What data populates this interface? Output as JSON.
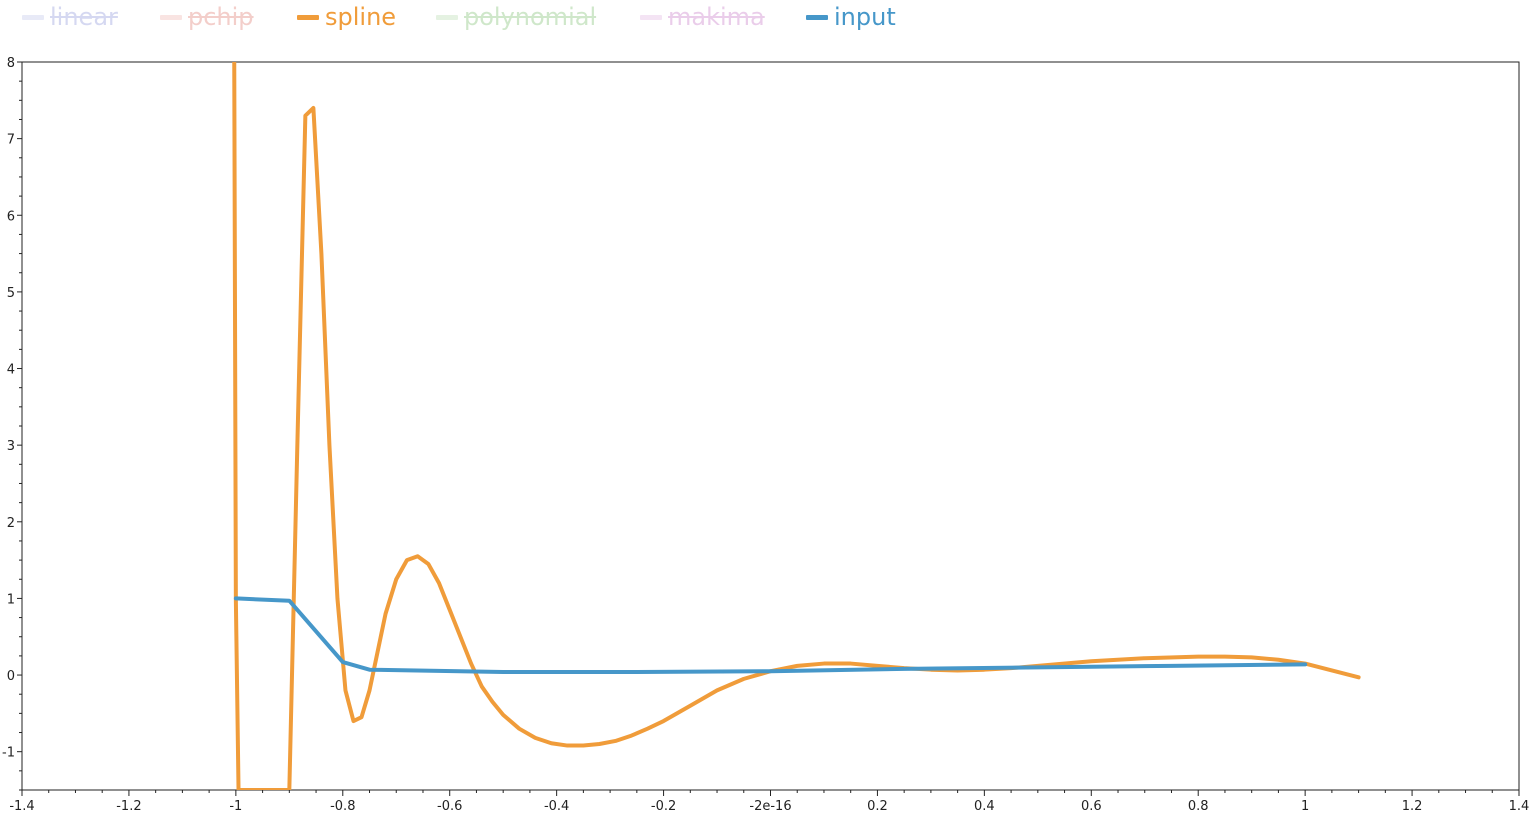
{
  "chart_data": {
    "type": "line",
    "title": "",
    "xlabel": "",
    "ylabel": "",
    "xlim": [
      -1.4,
      1.4
    ],
    "ylim": [
      -1.5,
      8
    ],
    "grid": false,
    "legend_placement": "top-left",
    "x_ticks": [
      {
        "value": -1.4,
        "label": "-1.4"
      },
      {
        "value": -1.2,
        "label": "-1.2"
      },
      {
        "value": -1.0,
        "label": "-1"
      },
      {
        "value": -0.8,
        "label": "-0.8"
      },
      {
        "value": -0.6,
        "label": "-0.6"
      },
      {
        "value": -0.4,
        "label": "-0.4"
      },
      {
        "value": -0.2,
        "label": "-0.2"
      },
      {
        "value": 0.0,
        "label": "-2e-16"
      },
      {
        "value": 0.2,
        "label": "0.2"
      },
      {
        "value": 0.4,
        "label": "0.4"
      },
      {
        "value": 0.6,
        "label": "0.6"
      },
      {
        "value": 0.8,
        "label": "0.8"
      },
      {
        "value": 1.0,
        "label": "1"
      },
      {
        "value": 1.2,
        "label": "1.2"
      },
      {
        "value": 1.4,
        "label": "1.4"
      }
    ],
    "y_ticks": [
      {
        "value": -1,
        "label": "-1"
      },
      {
        "value": 0,
        "label": "0"
      },
      {
        "value": 1,
        "label": "1"
      },
      {
        "value": 2,
        "label": "2"
      },
      {
        "value": 3,
        "label": "3"
      },
      {
        "value": 4,
        "label": "4"
      },
      {
        "value": 5,
        "label": "5"
      },
      {
        "value": 6,
        "label": "6"
      },
      {
        "value": 7,
        "label": "7"
      },
      {
        "value": 8,
        "label": "8"
      }
    ],
    "series": [
      {
        "name": "linear",
        "color": "#b3b9e6",
        "visible": false,
        "x": [],
        "y": []
      },
      {
        "name": "pchip",
        "color": "#eba7a0",
        "visible": false,
        "x": [],
        "y": []
      },
      {
        "name": "spline",
        "color": "#f09c3a",
        "visible": true,
        "x": [
          -1.003,
          -1.0,
          -0.995,
          -0.9,
          -0.885,
          -0.87,
          -0.855,
          -0.84,
          -0.825,
          -0.81,
          -0.795,
          -0.78,
          -0.765,
          -0.75,
          -0.735,
          -0.72,
          -0.7,
          -0.68,
          -0.66,
          -0.64,
          -0.62,
          -0.6,
          -0.58,
          -0.56,
          -0.54,
          -0.52,
          -0.5,
          -0.47,
          -0.44,
          -0.41,
          -0.38,
          -0.35,
          -0.32,
          -0.29,
          -0.26,
          -0.23,
          -0.2,
          -0.15,
          -0.1,
          -0.05,
          0.0,
          0.05,
          0.1,
          0.15,
          0.2,
          0.25,
          0.3,
          0.35,
          0.4,
          0.45,
          0.5,
          0.6,
          0.7,
          0.8,
          0.85,
          0.9,
          0.95,
          1.0,
          1.05,
          1.1
        ],
        "y": [
          8.0,
          0.98,
          -1.5,
          -1.5,
          3.0,
          7.3,
          7.4,
          5.5,
          3.0,
          1.0,
          -0.2,
          -0.6,
          -0.55,
          -0.2,
          0.3,
          0.8,
          1.25,
          1.5,
          1.55,
          1.45,
          1.2,
          0.85,
          0.5,
          0.15,
          -0.15,
          -0.35,
          -0.52,
          -0.7,
          -0.82,
          -0.89,
          -0.92,
          -0.92,
          -0.9,
          -0.86,
          -0.79,
          -0.7,
          -0.6,
          -0.4,
          -0.2,
          -0.05,
          0.05,
          0.12,
          0.15,
          0.15,
          0.12,
          0.09,
          0.07,
          0.06,
          0.07,
          0.09,
          0.12,
          0.18,
          0.22,
          0.24,
          0.24,
          0.23,
          0.2,
          0.15,
          0.06,
          -0.03
        ]
      },
      {
        "name": "polynomial",
        "color": "#a9d5a0",
        "visible": false,
        "x": [],
        "y": []
      },
      {
        "name": "makima",
        "color": "#d9a6d9",
        "visible": false,
        "x": [],
        "y": []
      },
      {
        "name": "input",
        "color": "#4697c9",
        "visible": true,
        "x": [
          -1.0,
          -0.9,
          -0.8,
          -0.75,
          -0.5,
          -0.25,
          0.0,
          0.25,
          0.5,
          0.75,
          1.0
        ],
        "y": [
          1.0,
          0.97,
          0.17,
          0.07,
          0.04,
          0.04,
          0.05,
          0.08,
          0.1,
          0.12,
          0.14
        ]
      }
    ]
  }
}
